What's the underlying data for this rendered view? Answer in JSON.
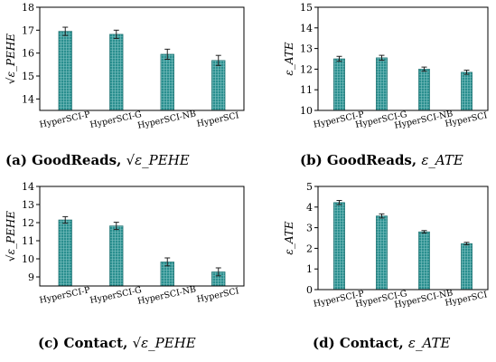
{
  "chart_data": [
    {
      "type": "bar",
      "categories": [
        "HyperSCI-P",
        "HyperSCI-G",
        "HyperSCI-NB",
        "HyperSCI"
      ],
      "values": [
        16.95,
        16.82,
        15.95,
        15.68
      ],
      "errors": [
        0.18,
        0.18,
        0.22,
        0.22
      ],
      "ylabel": "√ε_PEHE",
      "ylim": [
        13.5,
        18
      ],
      "yticks": [
        14,
        15,
        16,
        17,
        18
      ],
      "caption_prefix": "(a) GoodReads, ",
      "caption_metric": "√ε_PEHE"
    },
    {
      "type": "bar",
      "categories": [
        "HyperSCI-P",
        "HyperSCI-G",
        "HyperSCI-NB",
        "HyperSCI"
      ],
      "values": [
        12.5,
        12.55,
        12.0,
        11.85
      ],
      "errors": [
        0.12,
        0.12,
        0.1,
        0.1
      ],
      "ylabel": "ε_ATE",
      "ylim": [
        10,
        15
      ],
      "yticks": [
        10,
        11,
        12,
        13,
        14,
        15
      ],
      "caption_prefix": "(b) GoodReads, ",
      "caption_metric": "ε_ATE"
    },
    {
      "type": "bar",
      "categories": [
        "HyperSCI-P",
        "HyperSCI-G",
        "HyperSCI-NB",
        "HyperSCI"
      ],
      "values": [
        12.15,
        11.82,
        9.83,
        9.28
      ],
      "errors": [
        0.18,
        0.2,
        0.22,
        0.22
      ],
      "ylabel": "√ε_PEHE",
      "ylim": [
        8.5,
        14
      ],
      "yticks": [
        9,
        10,
        11,
        12,
        13,
        14
      ],
      "caption_prefix": "(c) Contact, ",
      "caption_metric": "√ε_PEHE"
    },
    {
      "type": "bar",
      "categories": [
        "HyperSCI-P",
        "HyperSCI-G",
        "HyperSCI-NB",
        "HyperSCI"
      ],
      "values": [
        4.22,
        3.57,
        2.8,
        2.23
      ],
      "errors": [
        0.1,
        0.1,
        0.06,
        0.06
      ],
      "ylabel": "ε_ATE",
      "ylim": [
        0,
        5
      ],
      "yticks": [
        0,
        1,
        2,
        3,
        4,
        5
      ],
      "caption_prefix": "(d) Contact, ",
      "caption_metric": "ε_ATE"
    }
  ],
  "colors": {
    "bar_fill": "#2a8f8f",
    "bar_hatch": "#7fc2c2",
    "bar_edge": "#1d6b6b",
    "error_bar": "#222222"
  }
}
